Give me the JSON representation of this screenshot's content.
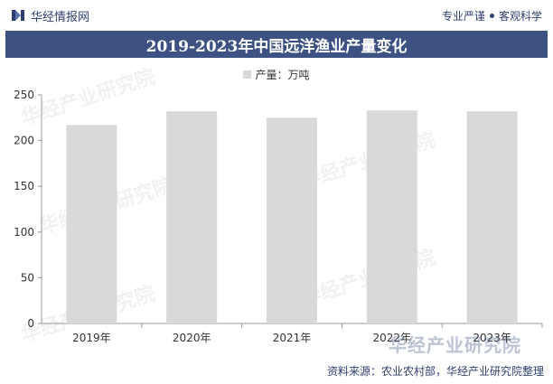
{
  "header": {
    "brand": "华经情报网",
    "slogan_left": "专业严谨",
    "slogan_right": "客观科学"
  },
  "chart_data": {
    "type": "bar",
    "title": "2019-2023年中国远洋渔业产量变化",
    "legend_label": "产量：万吨",
    "categories": [
      "2019年",
      "2020年",
      "2021年",
      "2022年",
      "2023年"
    ],
    "values": [
      217,
      232,
      225,
      233,
      232
    ],
    "yticks": [
      0,
      50,
      100,
      150,
      200,
      250
    ],
    "ylim": [
      0,
      250
    ],
    "bar_color": "#d9d9d9",
    "grid": false,
    "legend_position": "top-center"
  },
  "footer": {
    "source": "资料来源：农业农村部，华经产业研究院整理",
    "watermark": "华经产业研究院"
  }
}
